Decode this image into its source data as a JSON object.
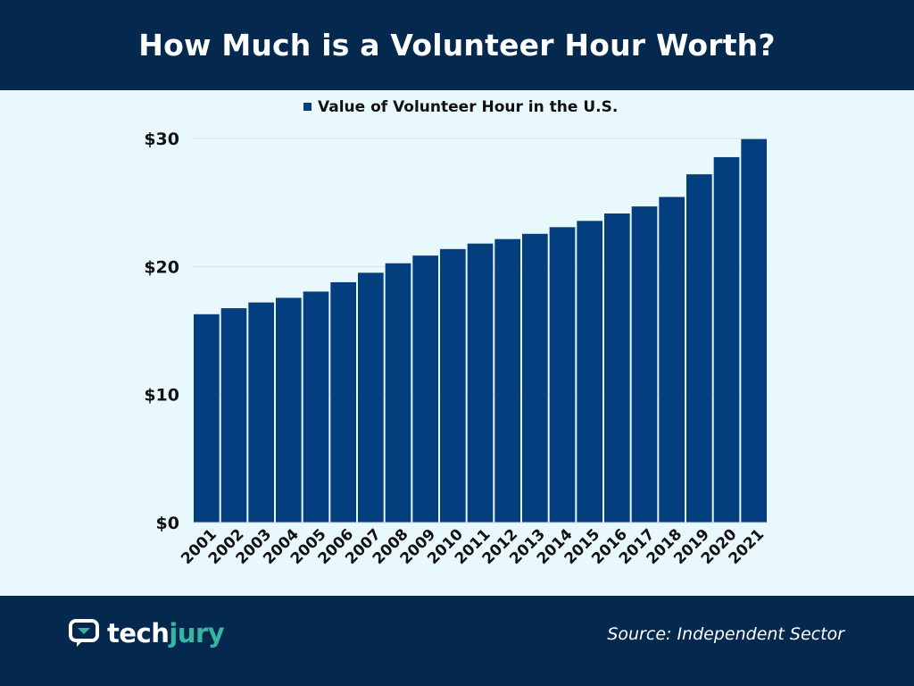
{
  "header": {
    "title": "How Much is a Volunteer Hour Worth?"
  },
  "footer": {
    "logo_tech": "tech",
    "logo_jury": "jury",
    "logo_icon": "chat-bubble-icon",
    "source": "Source: Independent Sector"
  },
  "colors": {
    "header_bg": "#05284f",
    "page_bg": "#e9f8fd",
    "bar": "#033f7f",
    "brand_accent": "#3bb3a1"
  },
  "chart_data": {
    "type": "bar",
    "categories": [
      "2001",
      "2002",
      "2003",
      "2004",
      "2005",
      "2006",
      "2007",
      "2008",
      "2009",
      "2010",
      "2011",
      "2012",
      "2013",
      "2014",
      "2015",
      "2016",
      "2017",
      "2018",
      "2019",
      "2020",
      "2021"
    ],
    "series": [
      {
        "name": "Value of Volunteer Hour in the U.S.",
        "values": [
          16.27,
          16.74,
          17.19,
          17.55,
          18.04,
          18.77,
          19.51,
          20.25,
          20.85,
          21.36,
          21.79,
          22.14,
          22.55,
          23.07,
          23.56,
          24.14,
          24.69,
          25.43,
          27.2,
          28.54,
          29.95
        ]
      }
    ],
    "yticks": [
      "$0",
      "$10",
      "$20",
      "$30"
    ],
    "ytick_values": [
      0,
      10,
      20,
      30
    ],
    "ylim": [
      0,
      30
    ],
    "grid": true,
    "legend_position": "top-center"
  }
}
